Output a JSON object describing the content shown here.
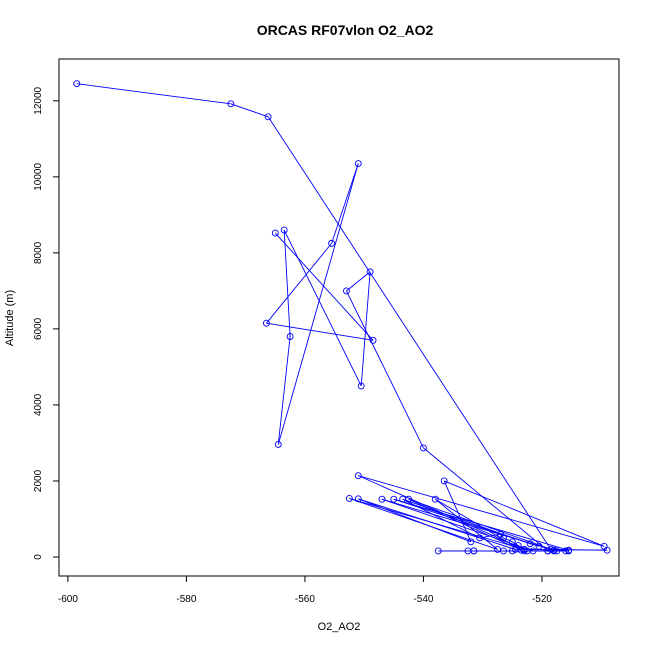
{
  "chart_data": {
    "type": "line",
    "title": "ORCAS RF07vlon O2_AO2",
    "xlabel": "O2_AO2",
    "ylabel": "Altitude (m)",
    "xlim": [
      -601.5,
      -507
    ],
    "ylim": [
      -500,
      13100
    ],
    "xticks": [
      -600,
      -580,
      -560,
      -540,
      -520
    ],
    "yticks": [
      0,
      2000,
      4000,
      6000,
      8000,
      10000,
      12000
    ],
    "series_color": "#0000ff",
    "markers": "open-circle",
    "series": [
      {
        "points": [
          [
            -598.5,
            12450
          ],
          [
            -572.5,
            11920
          ],
          [
            -566.2,
            11580
          ],
          [
            -518.5,
            200
          ],
          [
            -509.0,
            180
          ],
          [
            -523.0,
            200
          ],
          [
            -524.0,
            300
          ],
          [
            -525.0,
            400
          ],
          [
            -526.5,
            500
          ],
          [
            -527.0,
            600
          ],
          [
            -530.5,
            500
          ],
          [
            -543.5,
            1520
          ],
          [
            -522.0,
            350
          ],
          [
            -520.5,
            280
          ],
          [
            -545.0,
            1520
          ],
          [
            -515.5,
            180
          ],
          [
            -524.5,
            200
          ],
          [
            -551.0,
            1530
          ],
          [
            -532.0,
            400
          ],
          [
            -536.5,
            2000
          ],
          [
            -509.5,
            280
          ],
          [
            -551.0,
            2140
          ],
          [
            -523.0,
            200
          ],
          [
            -552.5,
            1540
          ],
          [
            -527.5,
            200
          ],
          [
            -538.0,
            1520
          ],
          [
            -523.5,
            180
          ],
          [
            -542.5,
            1520
          ],
          [
            -518.0,
            180
          ],
          [
            -547.0,
            1520
          ],
          [
            -521.5,
            160
          ],
          [
            -537.5,
            160
          ],
          [
            -531.5,
            160
          ],
          [
            -532.5,
            160
          ],
          [
            -523.0,
            160
          ],
          [
            -519.0,
            160
          ],
          [
            -518.0,
            160
          ],
          [
            -517.5,
            160
          ],
          [
            -516.0,
            160
          ],
          [
            -515.5,
            160
          ],
          [
            -522.5,
            160
          ],
          [
            -525.0,
            160
          ],
          [
            -526.5,
            160
          ],
          [
            -531.5,
            160
          ],
          [
            -519.0,
            160
          ],
          [
            -540.0,
            2870
          ],
          [
            -553.0,
            7000
          ],
          [
            -549.0,
            7500
          ],
          [
            -550.5,
            4500
          ],
          [
            -563.5,
            8600
          ],
          [
            -562.5,
            5800
          ],
          [
            -564.5,
            2960
          ],
          [
            -551.0,
            10350
          ],
          [
            -555.5,
            8250
          ],
          [
            -566.5,
            6150
          ],
          [
            -548.5,
            5700
          ],
          [
            -565.0,
            8520
          ]
        ]
      }
    ]
  }
}
